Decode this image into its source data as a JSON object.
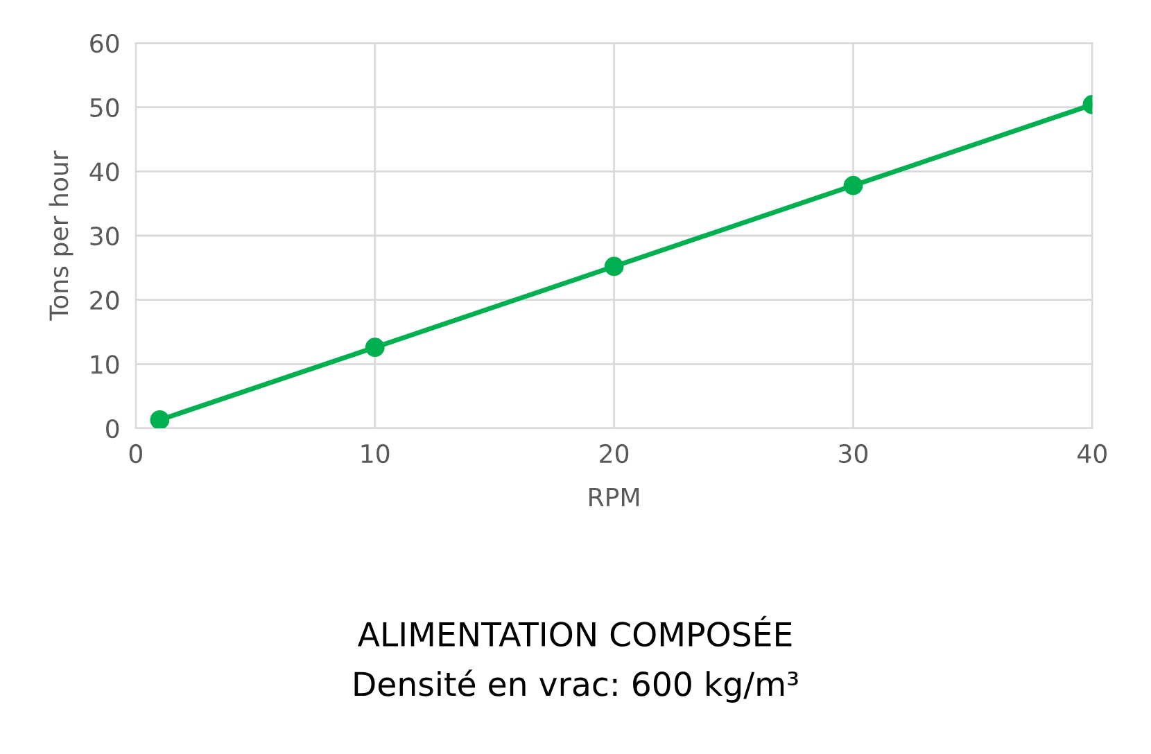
{
  "chart_data": {
    "type": "line",
    "xlabel": "RPM",
    "ylabel": "Tons per hour",
    "x": [
      1,
      10,
      20,
      30,
      40
    ],
    "series": [
      {
        "color": "#00b050",
        "values": [
          1.3,
          12.6,
          25.2,
          37.8,
          50.4
        ]
      }
    ],
    "xlim": [
      0,
      40
    ],
    "xticks": [
      0,
      10,
      20,
      30,
      40
    ],
    "ylim": [
      0,
      60
    ],
    "yticks": [
      0,
      10,
      20,
      30,
      40,
      50,
      60
    ],
    "grid": true,
    "marker": "circle",
    "line_style": "solid",
    "annotations": [
      "ALIMENTATION COMPOSÉE",
      "Densité en vrac: 600 kg/m³"
    ]
  }
}
